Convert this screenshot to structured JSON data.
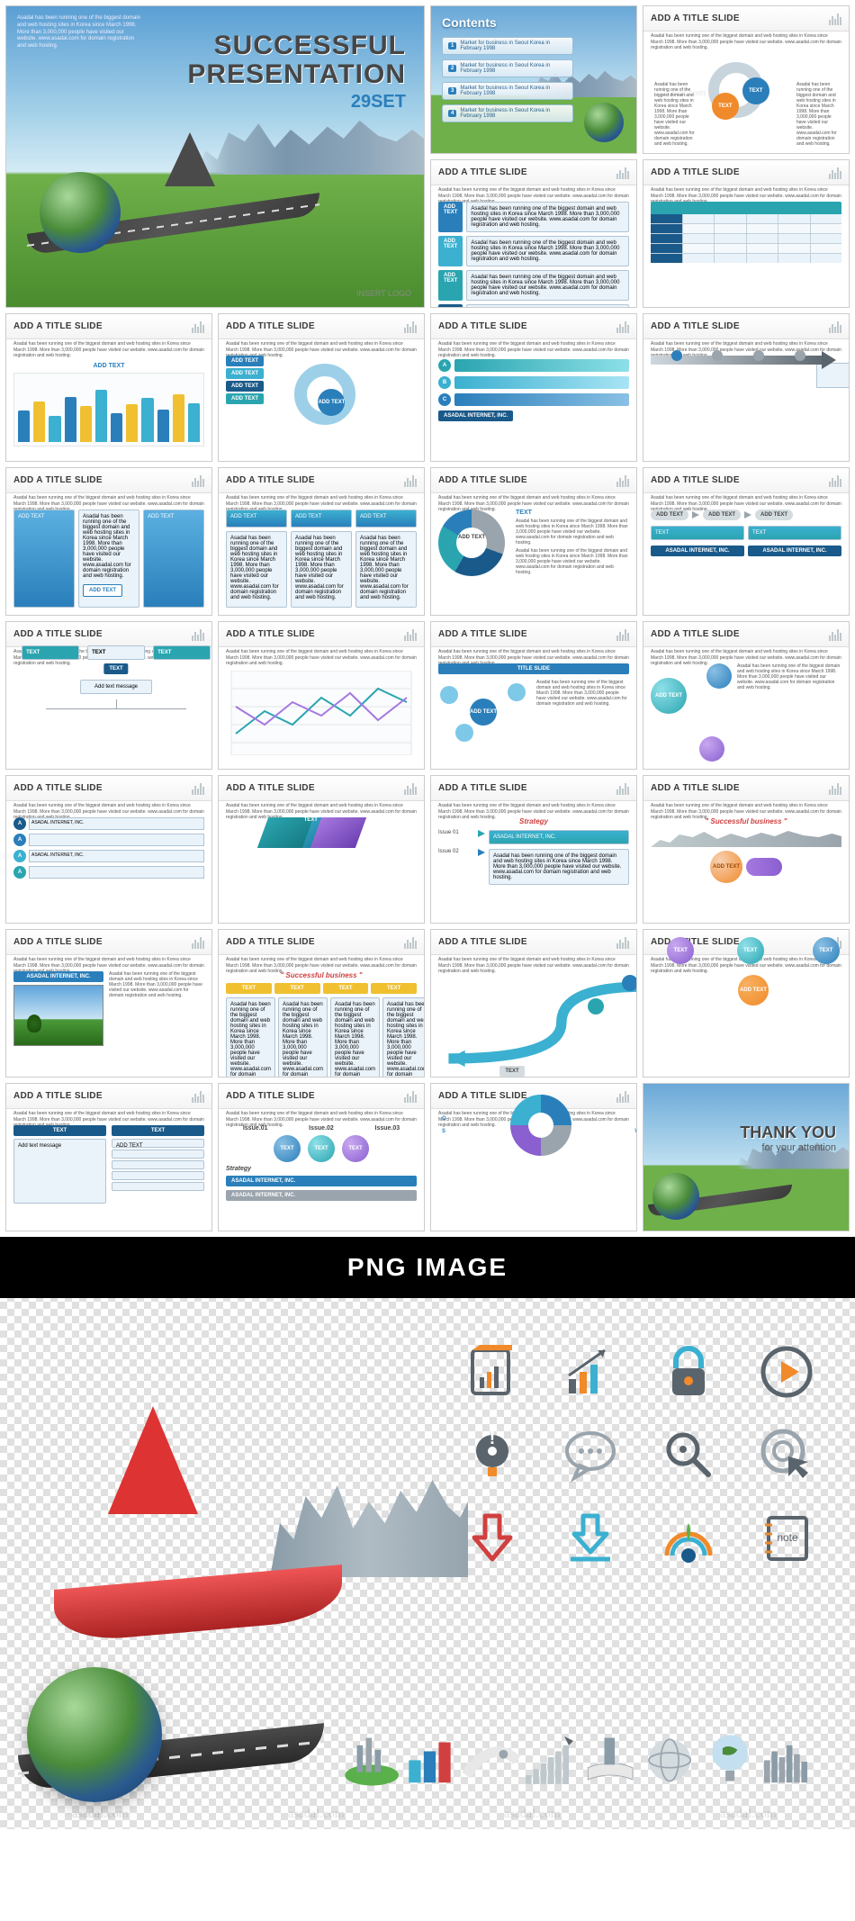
{
  "watermark": "asadal.com",
  "hero": {
    "title_line1": "SUCCESSFUL",
    "title_line2": "PRESENTATION",
    "set_label": "29SET",
    "insert_logo": "INSERT LOGO",
    "corner_text": "Asadal has been running one of the biggest domain and web hosting sites in Korea since March 1998. More than 3,000,000 people have visited our website. www.asadal.com for domain registration and web hosting.",
    "colors": {
      "title": "#464646",
      "set": "#2a7fbb",
      "sky_top": "#5a9fd4",
      "grass": "#4a8c2e"
    }
  },
  "contents": {
    "heading": "Contents",
    "item_text": "Market for business in Seoul Korea in February 1998",
    "items": [
      "1",
      "2",
      "3",
      "4"
    ]
  },
  "generic": {
    "title": "ADD A TITLE SLIDE",
    "subtext": "Asadal has been running one of the biggest domain and web hosting sites in Korea since March 1998. More than 3,000,000 people have visited our website. www.asadal.com for domain registration and web hosting.",
    "add_text": "ADD TEXT",
    "add_text_msg": "Add text message",
    "title_slide": "TITLE SLIDE",
    "text": "TEXT",
    "company": "ASADAL INTERNET, INC.",
    "successful_biz": "\" Successful  business \"",
    "strategy": "Strategy",
    "issue": "Issue",
    "issue01": "Issue.01",
    "issue02": "Issue.02",
    "issue03": "Issue.03"
  },
  "thank": {
    "line1": "THANK YOU",
    "line2": "for your attention"
  },
  "palette": {
    "cyan": "#3bb0d0",
    "blue": "#2a7fbb",
    "navy": "#1a5a8a",
    "teal": "#2aa5b0",
    "yellow": "#f0c030",
    "orange": "#f08a2a",
    "green": "#5ab04a",
    "purple": "#8a5fd0",
    "violet": "#a678e0",
    "pink": "#e078c0",
    "gray": "#9aa4ac",
    "dgray": "#5a646c",
    "lgray": "#d4dce0",
    "red": "#d04040"
  },
  "bar_chart": {
    "heights": [
      48,
      62,
      40,
      70,
      55,
      80,
      45,
      58,
      68,
      50,
      74,
      60
    ],
    "colors": [
      "#2a7fbb",
      "#f0c030",
      "#3bb0d0",
      "#2a7fbb",
      "#f0c030",
      "#3bb0d0",
      "#2a7fbb",
      "#f0c030",
      "#3bb0d0",
      "#2a7fbb",
      "#f0c030",
      "#3bb0d0"
    ]
  },
  "line_chart": {
    "s1": [
      20,
      45,
      30,
      60,
      40,
      70,
      55
    ],
    "s2": [
      50,
      30,
      55,
      40,
      65,
      35,
      60
    ],
    "c1": "#2aa5b0",
    "c2": "#a678e0"
  },
  "png": {
    "heading": "PNG IMAGE",
    "note": "note",
    "icons": [
      {
        "name": "document-chart-icon",
        "c1": "#5a646c",
        "c2": "#f08a2a"
      },
      {
        "name": "growth-chart-icon",
        "c1": "#5a646c",
        "c2": "#f08a2a",
        "c3": "#3bb0d0"
      },
      {
        "name": "lock-icon",
        "c1": "#3bb0d0",
        "c2": "#5a646c",
        "c3": "#f08a2a"
      },
      {
        "name": "play-circle-icon",
        "c1": "#5a646c",
        "c2": "#f08a2a"
      },
      {
        "name": "idea-bulb-icon",
        "c1": "#5a646c",
        "c2": "#f08a2a"
      },
      {
        "name": "speech-bubble-icon",
        "c1": "#9aa4ac"
      },
      {
        "name": "magnifier-icon",
        "c1": "#5a646c"
      },
      {
        "name": "cursor-target-icon",
        "c1": "#9aa4ac",
        "c2": "#5a646c"
      },
      {
        "name": "down-arrow-icon",
        "c1": "#d04040"
      },
      {
        "name": "download-arrow-icon",
        "c1": "#3bb0d0"
      },
      {
        "name": "rainbow-target-icon",
        "c1": "#f08a2a",
        "c2": "#3bb0d0",
        "c3": "#1a5a8a",
        "c4": "#5ab04a"
      },
      {
        "name": "notebook-icon",
        "c1": "#f08a2a",
        "c2": "#5a646c"
      }
    ]
  }
}
